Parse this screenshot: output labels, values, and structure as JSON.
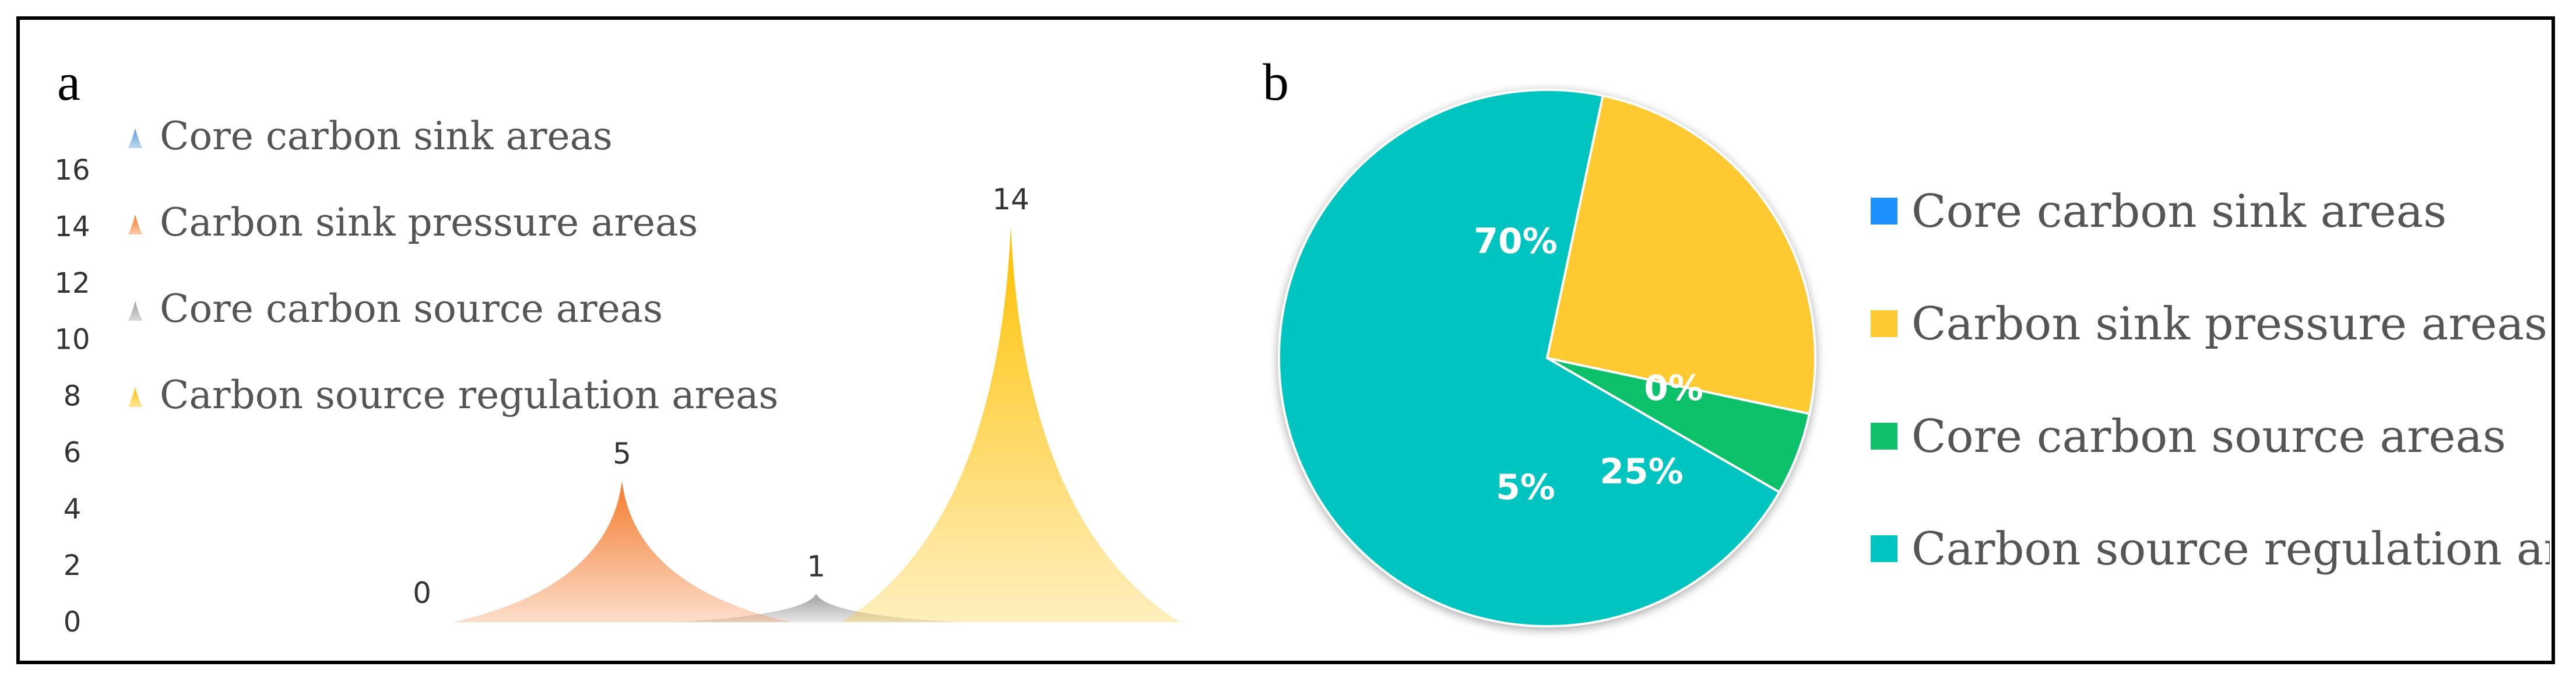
{
  "panel_a": {
    "letter": "a",
    "chart_data": {
      "type": "bar",
      "categories": [
        "Core carbon sink areas",
        "Carbon sink pressure areas",
        "Core carbon source areas",
        "Carbon source regulation areas"
      ],
      "values": [
        0,
        5,
        1,
        14
      ],
      "value_labels": [
        "0",
        "5",
        "1",
        "14"
      ],
      "y_ticks": [
        "0",
        "2",
        "4",
        "6",
        "8",
        "10",
        "12",
        "14",
        "16"
      ],
      "ylim": [
        0,
        16
      ],
      "colors": [
        "#5b9bd5",
        "#f47a2c",
        "#a0a0a0",
        "#ffc000"
      ],
      "legend": [
        "Core carbon sink areas",
        "Carbon sink pressure areas",
        "Core carbon source areas",
        "Carbon source regulation areas"
      ],
      "legend_position": "top-left"
    }
  },
  "panel_b": {
    "letter": "b",
    "chart_data": {
      "type": "pie",
      "categories": [
        "Core carbon sink areas",
        "Carbon sink pressure areas",
        "Core carbon source areas",
        "Carbon source regulation areas"
      ],
      "values": [
        0,
        25,
        5,
        70
      ],
      "labels": [
        "0%",
        "25%",
        "5%",
        "70%"
      ],
      "colors": [
        "#1e90ff",
        "#ffc933",
        "#10c06a",
        "#00c4c0"
      ],
      "legend": [
        "Core carbon sink areas",
        "Carbon sink pressure areas",
        "Core carbon source areas",
        "Carbon source regulation areas"
      ],
      "legend_position": "right"
    }
  }
}
